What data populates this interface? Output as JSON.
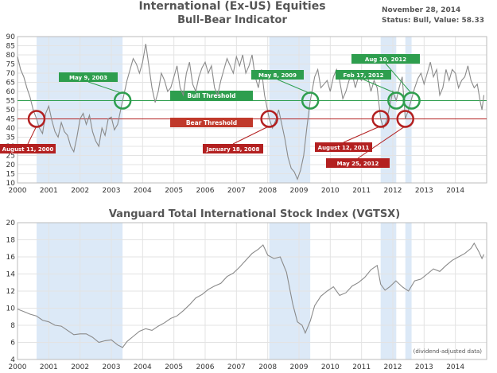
{
  "header": {
    "title_line1": "International (Ex-US) Equities",
    "title_line2": "Bull-Bear Indicator",
    "date": "November 28, 2014",
    "status": "Status: Bull, Value: 58.33"
  },
  "chart_data": [
    {
      "type": "line",
      "name": "indicator",
      "title": "International (Ex-US) Equities Bull-Bear Indicator",
      "xlim": [
        2000,
        2015
      ],
      "ylim": [
        10,
        90
      ],
      "xticks": [
        2000,
        2001,
        2002,
        2003,
        2004,
        2005,
        2006,
        2007,
        2008,
        2009,
        2010,
        2011,
        2012,
        2013,
        2014
      ],
      "yticks": [
        10,
        15,
        20,
        25,
        30,
        35,
        40,
        45,
        50,
        55,
        60,
        65,
        70,
        75,
        80,
        85,
        90
      ],
      "bull_threshold": 55,
      "bear_threshold": 45,
      "bull_label": "Bull Threshold",
      "bear_label": "Bear Threshold",
      "bear_periods": [
        [
          2000.61,
          2003.36
        ],
        [
          2008.05,
          2009.36
        ],
        [
          2011.61,
          2012.11
        ],
        [
          2012.4,
          2012.6
        ]
      ],
      "x": [
        2000.0,
        2000.1,
        2000.2,
        2000.3,
        2000.4,
        2000.5,
        2000.61,
        2000.7,
        2000.8,
        2000.9,
        2001.0,
        2001.1,
        2001.2,
        2001.3,
        2001.4,
        2001.5,
        2001.6,
        2001.7,
        2001.8,
        2001.9,
        2002.0,
        2002.1,
        2002.2,
        2002.3,
        2002.4,
        2002.5,
        2002.6,
        2002.7,
        2002.8,
        2002.9,
        2003.0,
        2003.1,
        2003.2,
        2003.36,
        2003.5,
        2003.6,
        2003.7,
        2003.8,
        2003.9,
        2004.0,
        2004.1,
        2004.2,
        2004.3,
        2004.4,
        2004.5,
        2004.6,
        2004.7,
        2004.8,
        2004.9,
        2005.0,
        2005.1,
        2005.2,
        2005.3,
        2005.4,
        2005.5,
        2005.6,
        2005.7,
        2005.8,
        2005.9,
        2006.0,
        2006.1,
        2006.2,
        2006.3,
        2006.4,
        2006.5,
        2006.6,
        2006.7,
        2006.8,
        2006.9,
        2007.0,
        2007.1,
        2007.2,
        2007.3,
        2007.4,
        2007.5,
        2007.6,
        2007.7,
        2007.8,
        2007.9,
        2008.05,
        2008.15,
        2008.25,
        2008.35,
        2008.45,
        2008.55,
        2008.65,
        2008.75,
        2008.85,
        2008.95,
        2009.05,
        2009.15,
        2009.25,
        2009.36,
        2009.5,
        2009.6,
        2009.7,
        2009.8,
        2009.9,
        2010.0,
        2010.1,
        2010.2,
        2010.3,
        2010.4,
        2010.5,
        2010.6,
        2010.7,
        2010.8,
        2010.9,
        2011.0,
        2011.1,
        2011.2,
        2011.3,
        2011.4,
        2011.5,
        2011.61,
        2011.7,
        2011.8,
        2011.9,
        2012.0,
        2012.11,
        2012.2,
        2012.3,
        2012.4,
        2012.5,
        2012.6,
        2012.7,
        2012.8,
        2012.9,
        2013.0,
        2013.1,
        2013.2,
        2013.3,
        2013.4,
        2013.5,
        2013.6,
        2013.7,
        2013.8,
        2013.9,
        2014.0,
        2014.1,
        2014.2,
        2014.3,
        2014.4,
        2014.5,
        2014.6,
        2014.7,
        2014.8,
        2014.85,
        2014.91
      ],
      "values": [
        79,
        72,
        68,
        62,
        57,
        50,
        45,
        40,
        37,
        48,
        52,
        44,
        38,
        35,
        43,
        38,
        36,
        30,
        27,
        35,
        45,
        48,
        42,
        47,
        38,
        33,
        30,
        40,
        36,
        45,
        46,
        39,
        42,
        55,
        66,
        72,
        78,
        75,
        70,
        76,
        86,
        74,
        62,
        54,
        60,
        70,
        66,
        60,
        62,
        68,
        74,
        62,
        58,
        70,
        76,
        64,
        60,
        68,
        73,
        76,
        70,
        74,
        62,
        58,
        66,
        72,
        78,
        74,
        70,
        79,
        74,
        80,
        70,
        74,
        80,
        68,
        62,
        72,
        58,
        45,
        40,
        44,
        50,
        42,
        34,
        24,
        18,
        16,
        12,
        17,
        25,
        40,
        55,
        68,
        72,
        62,
        64,
        66,
        60,
        68,
        72,
        66,
        56,
        60,
        66,
        70,
        62,
        68,
        66,
        70,
        68,
        60,
        66,
        62,
        45,
        40,
        44,
        52,
        60,
        55,
        62,
        68,
        45,
        50,
        56,
        62,
        67,
        70,
        64,
        70,
        76,
        68,
        72,
        58,
        62,
        72,
        66,
        72,
        70,
        62,
        66,
        68,
        74,
        66,
        62,
        64,
        54,
        50,
        58
      ]
    },
    {
      "type": "line",
      "name": "price",
      "title": "Vanguard Total International Stock Index (VGTSX)",
      "note": "(dividend-adjusted data)",
      "xlim": [
        2000,
        2015
      ],
      "ylim": [
        4,
        20
      ],
      "xticks": [
        2000,
        2001,
        2002,
        2003,
        2004,
        2005,
        2006,
        2007,
        2008,
        2009,
        2010,
        2011,
        2012,
        2013,
        2014
      ],
      "yticks": [
        4,
        6,
        8,
        10,
        12,
        14,
        16,
        18,
        20
      ],
      "bear_periods": [
        [
          2000.61,
          2003.36
        ],
        [
          2008.05,
          2009.36
        ],
        [
          2011.61,
          2012.11
        ],
        [
          2012.4,
          2012.6
        ]
      ],
      "x": [
        2000.0,
        2000.2,
        2000.4,
        2000.6,
        2000.8,
        2001.0,
        2001.2,
        2001.4,
        2001.6,
        2001.8,
        2002.0,
        2002.2,
        2002.4,
        2002.6,
        2002.8,
        2003.0,
        2003.2,
        2003.36,
        2003.5,
        2003.7,
        2003.9,
        2004.1,
        2004.3,
        2004.5,
        2004.7,
        2004.9,
        2005.1,
        2005.3,
        2005.5,
        2005.7,
        2005.9,
        2006.1,
        2006.3,
        2006.5,
        2006.7,
        2006.9,
        2007.1,
        2007.3,
        2007.5,
        2007.7,
        2007.85,
        2008.0,
        2008.2,
        2008.4,
        2008.6,
        2008.8,
        2008.95,
        2009.1,
        2009.2,
        2009.36,
        2009.5,
        2009.7,
        2009.9,
        2010.1,
        2010.3,
        2010.5,
        2010.7,
        2010.9,
        2011.1,
        2011.3,
        2011.5,
        2011.61,
        2011.75,
        2011.9,
        2012.1,
        2012.3,
        2012.5,
        2012.7,
        2012.9,
        2013.1,
        2013.3,
        2013.5,
        2013.7,
        2013.9,
        2014.1,
        2014.3,
        2014.5,
        2014.6,
        2014.75,
        2014.85,
        2014.91
      ],
      "values": [
        9.9,
        9.6,
        9.3,
        9.1,
        8.6,
        8.4,
        8.0,
        7.9,
        7.4,
        6.9,
        7.0,
        7.0,
        6.6,
        6.0,
        6.2,
        6.3,
        5.7,
        5.4,
        6.1,
        6.7,
        7.3,
        7.6,
        7.4,
        7.9,
        8.3,
        8.8,
        9.1,
        9.7,
        10.4,
        11.2,
        11.6,
        12.2,
        12.6,
        12.9,
        13.7,
        14.1,
        14.8,
        15.6,
        16.4,
        16.9,
        17.4,
        16.2,
        15.8,
        16.0,
        14.2,
        10.5,
        8.4,
        8.0,
        7.1,
        8.5,
        10.3,
        11.4,
        12.0,
        12.5,
        11.5,
        11.8,
        12.6,
        13.0,
        13.6,
        14.5,
        15.0,
        12.8,
        12.1,
        12.5,
        13.2,
        12.5,
        12.0,
        13.2,
        13.4,
        14.0,
        14.6,
        14.3,
        15.0,
        15.6,
        16.0,
        16.4,
        17.0,
        17.6,
        16.6,
        15.8,
        16.3
      ]
    }
  ],
  "annotations": {
    "bear_signals": [
      {
        "label": "August 11, 2000",
        "x": 2000.61
      },
      {
        "label": "January 18, 2008",
        "x": 2008.05
      },
      {
        "label": "August 12, 2011",
        "x": 2011.61
      },
      {
        "label": "May 25, 2012",
        "x": 2012.4
      }
    ],
    "bull_signals": [
      {
        "label": "May 9, 2003",
        "x": 2003.36
      },
      {
        "label": "May 8, 2009",
        "x": 2009.36
      },
      {
        "label": "Feb 17, 2012",
        "x": 2012.11
      },
      {
        "label": "Aug 10, 2012",
        "x": 2012.6
      }
    ]
  },
  "colors": {
    "bull": "#2e9e4e",
    "bear": "#b32020",
    "shade": "#dce9f7",
    "line": "#8a8a8a",
    "grid": "#e3e3e3"
  }
}
